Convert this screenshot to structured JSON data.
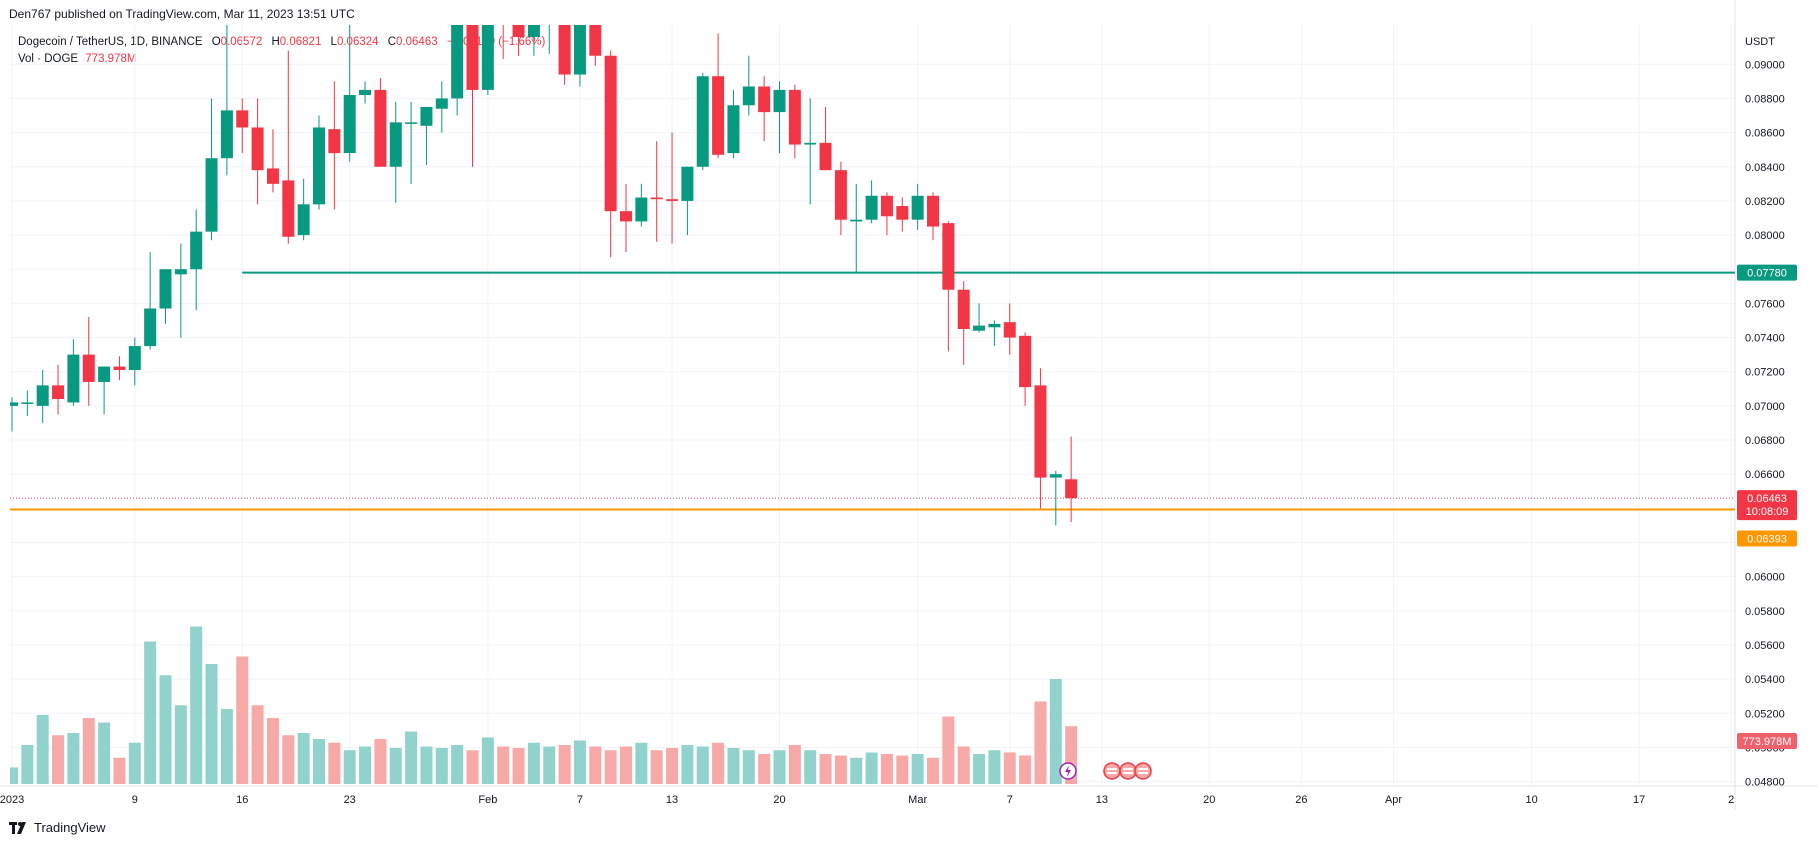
{
  "publisher_line": "Den767 published on TradingView.com, Mar 11, 2023 13:51 UTC",
  "footer": {
    "brand": "TradingView",
    "logo_icon": "tradingview-logo-icon"
  },
  "legend": {
    "symbol": "Dogecoin / TetherUS, 1D, BINANCE",
    "open_label": "O",
    "open": "0.06572",
    "high_label": "H",
    "high": "0.06821",
    "low_label": "L",
    "low": "0.06324",
    "close_label": "C",
    "close": "0.06463",
    "change": "−0.00109 (−1.66%)",
    "volume_label": "Vol · DOGE",
    "volume": "773.978M"
  },
  "colors": {
    "up": "#089981",
    "down": "#f23645",
    "up_volume": "#92d2cc",
    "down_volume": "#f7a9a7",
    "support_line": "#089981",
    "current_level_line": "#ff9800",
    "grid": "#f0f3fa"
  },
  "chart_data": {
    "type": "candlestick",
    "quote_currency": "USDT",
    "ylim": [
      0.0478,
      0.0923
    ],
    "y_ticks": [
      "0.04800",
      "0.05000",
      "0.05200",
      "0.05400",
      "0.05600",
      "0.05800",
      "0.06000",
      "0.06200",
      "0.06400",
      "0.06600",
      "0.06800",
      "0.07000",
      "0.07200",
      "0.07400",
      "0.07600",
      "0.07800",
      "0.08000",
      "0.08200",
      "0.08400",
      "0.08600",
      "0.08800",
      "0.09000"
    ],
    "x_tick_labels": [
      {
        "label": "2023",
        "day": 0
      },
      {
        "label": "9",
        "day": 8
      },
      {
        "label": "16",
        "day": 15
      },
      {
        "label": "23",
        "day": 22
      },
      {
        "label": "Feb",
        "day": 31
      },
      {
        "label": "7",
        "day": 37
      },
      {
        "label": "13",
        "day": 43
      },
      {
        "label": "20",
        "day": 50
      },
      {
        "label": "Mar",
        "day": 59
      },
      {
        "label": "7",
        "day": 65
      },
      {
        "label": "13",
        "day": 71
      },
      {
        "label": "20",
        "day": 78
      },
      {
        "label": "26",
        "day": 84
      },
      {
        "label": "Apr",
        "day": 90
      },
      {
        "label": "10",
        "day": 99
      },
      {
        "label": "17",
        "day": 106
      },
      {
        "label": "2",
        "day": 112
      }
    ],
    "horizontal_lines": [
      {
        "name": "support",
        "value": 0.0778,
        "label": "0.07780",
        "start_day": 15
      },
      {
        "name": "current-level",
        "value": 0.06393,
        "label": "0.06393"
      }
    ],
    "price_badges": {
      "last_price": "0.06463",
      "countdown": "10:08:09",
      "volume": "773.978M"
    },
    "candles": [
      {
        "o": 0.07,
        "h": 0.0705,
        "l": 0.0685,
        "c": 0.0702
      },
      {
        "o": 0.0702,
        "h": 0.0709,
        "l": 0.0694,
        "c": 0.0702
      },
      {
        "o": 0.07,
        "h": 0.0721,
        "l": 0.069,
        "c": 0.0712
      },
      {
        "o": 0.0712,
        "h": 0.0724,
        "l": 0.0695,
        "c": 0.0704
      },
      {
        "o": 0.0702,
        "h": 0.0739,
        "l": 0.07,
        "c": 0.073
      },
      {
        "o": 0.073,
        "h": 0.0752,
        "l": 0.07,
        "c": 0.0714
      },
      {
        "o": 0.0714,
        "h": 0.0722,
        "l": 0.0695,
        "c": 0.0723
      },
      {
        "o": 0.0723,
        "h": 0.0729,
        "l": 0.0715,
        "c": 0.0721
      },
      {
        "o": 0.0721,
        "h": 0.074,
        "l": 0.0712,
        "c": 0.0735
      },
      {
        "o": 0.0735,
        "h": 0.079,
        "l": 0.0733,
        "c": 0.0757
      },
      {
        "o": 0.0757,
        "h": 0.078,
        "l": 0.0748,
        "c": 0.078
      },
      {
        "o": 0.0777,
        "h": 0.0795,
        "l": 0.074,
        "c": 0.078
      },
      {
        "o": 0.078,
        "h": 0.0815,
        "l": 0.0756,
        "c": 0.0802
      },
      {
        "o": 0.0802,
        "h": 0.088,
        "l": 0.0797,
        "c": 0.0845
      },
      {
        "o": 0.0845,
        "h": 0.0945,
        "l": 0.0835,
        "c": 0.0873
      },
      {
        "o": 0.0873,
        "h": 0.088,
        "l": 0.0848,
        "c": 0.0863
      },
      {
        "o": 0.0863,
        "h": 0.088,
        "l": 0.0818,
        "c": 0.0838
      },
      {
        "o": 0.0839,
        "h": 0.0862,
        "l": 0.0825,
        "c": 0.083
      },
      {
        "o": 0.0832,
        "h": 0.0908,
        "l": 0.0795,
        "c": 0.0799
      },
      {
        "o": 0.08,
        "h": 0.0833,
        "l": 0.0797,
        "c": 0.0818
      },
      {
        "o": 0.0818,
        "h": 0.087,
        "l": 0.0815,
        "c": 0.0863
      },
      {
        "o": 0.0862,
        "h": 0.089,
        "l": 0.0815,
        "c": 0.0848
      },
      {
        "o": 0.0848,
        "h": 0.095,
        "l": 0.0843,
        "c": 0.0882
      },
      {
        "o": 0.0882,
        "h": 0.089,
        "l": 0.0877,
        "c": 0.0885
      },
      {
        "o": 0.0885,
        "h": 0.0892,
        "l": 0.084,
        "c": 0.084
      },
      {
        "o": 0.084,
        "h": 0.0878,
        "l": 0.0819,
        "c": 0.0866
      },
      {
        "o": 0.0866,
        "h": 0.0878,
        "l": 0.083,
        "c": 0.0866
      },
      {
        "o": 0.0864,
        "h": 0.0875,
        "l": 0.0841,
        "c": 0.0875
      },
      {
        "o": 0.0874,
        "h": 0.089,
        "l": 0.086,
        "c": 0.088
      },
      {
        "o": 0.088,
        "h": 0.0965,
        "l": 0.087,
        "c": 0.0932
      },
      {
        "o": 0.0932,
        "h": 0.094,
        "l": 0.084,
        "c": 0.0885
      },
      {
        "o": 0.0885,
        "h": 0.099,
        "l": 0.0882,
        "c": 0.097
      },
      {
        "o": 0.097,
        "h": 0.098,
        "l": 0.0903,
        "c": 0.094
      },
      {
        "o": 0.094,
        "h": 0.099,
        "l": 0.0905,
        "c": 0.0916
      },
      {
        "o": 0.0916,
        "h": 0.0945,
        "l": 0.0905,
        "c": 0.0932
      },
      {
        "o": 0.0932,
        "h": 0.096,
        "l": 0.0906,
        "c": 0.0935
      },
      {
        "o": 0.0935,
        "h": 0.095,
        "l": 0.0888,
        "c": 0.0894
      },
      {
        "o": 0.0894,
        "h": 0.0945,
        "l": 0.0887,
        "c": 0.0942
      },
      {
        "o": 0.0942,
        "h": 0.0965,
        "l": 0.0899,
        "c": 0.0905
      },
      {
        "o": 0.0905,
        "h": 0.0908,
        "l": 0.0787,
        "c": 0.0814
      },
      {
        "o": 0.0814,
        "h": 0.083,
        "l": 0.079,
        "c": 0.0808
      },
      {
        "o": 0.0808,
        "h": 0.083,
        "l": 0.0805,
        "c": 0.0822
      },
      {
        "o": 0.0822,
        "h": 0.0855,
        "l": 0.0796,
        "c": 0.0821
      },
      {
        "o": 0.0821,
        "h": 0.086,
        "l": 0.0795,
        "c": 0.082
      },
      {
        "o": 0.082,
        "h": 0.084,
        "l": 0.08,
        "c": 0.084
      },
      {
        "o": 0.084,
        "h": 0.0895,
        "l": 0.0838,
        "c": 0.0893
      },
      {
        "o": 0.0893,
        "h": 0.0918,
        "l": 0.0845,
        "c": 0.0847
      },
      {
        "o": 0.0848,
        "h": 0.0885,
        "l": 0.0845,
        "c": 0.0876
      },
      {
        "o": 0.0876,
        "h": 0.0905,
        "l": 0.087,
        "c": 0.0887
      },
      {
        "o": 0.0887,
        "h": 0.0893,
        "l": 0.0855,
        "c": 0.0872
      },
      {
        "o": 0.0872,
        "h": 0.089,
        "l": 0.0848,
        "c": 0.0885
      },
      {
        "o": 0.0885,
        "h": 0.0888,
        "l": 0.0845,
        "c": 0.0853
      },
      {
        "o": 0.0853,
        "h": 0.088,
        "l": 0.0818,
        "c": 0.0854
      },
      {
        "o": 0.0854,
        "h": 0.0875,
        "l": 0.0838,
        "c": 0.0838
      },
      {
        "o": 0.0838,
        "h": 0.0843,
        "l": 0.08,
        "c": 0.0809
      },
      {
        "o": 0.0808,
        "h": 0.083,
        "l": 0.0778,
        "c": 0.0809
      },
      {
        "o": 0.0809,
        "h": 0.0832,
        "l": 0.0807,
        "c": 0.0823
      },
      {
        "o": 0.0823,
        "h": 0.0825,
        "l": 0.08,
        "c": 0.0811
      },
      {
        "o": 0.0817,
        "h": 0.0822,
        "l": 0.0802,
        "c": 0.0809
      },
      {
        "o": 0.0809,
        "h": 0.083,
        "l": 0.0803,
        "c": 0.0823
      },
      {
        "o": 0.0823,
        "h": 0.0825,
        "l": 0.0797,
        "c": 0.0805
      },
      {
        "o": 0.0807,
        "h": 0.0808,
        "l": 0.0732,
        "c": 0.0768
      },
      {
        "o": 0.0768,
        "h": 0.0773,
        "l": 0.0724,
        "c": 0.0745
      },
      {
        "o": 0.0744,
        "h": 0.076,
        "l": 0.0743,
        "c": 0.0747
      },
      {
        "o": 0.0746,
        "h": 0.075,
        "l": 0.0735,
        "c": 0.0748
      },
      {
        "o": 0.0749,
        "h": 0.076,
        "l": 0.073,
        "c": 0.074
      },
      {
        "o": 0.0741,
        "h": 0.0743,
        "l": 0.07,
        "c": 0.0711
      },
      {
        "o": 0.0712,
        "h": 0.0722,
        "l": 0.064,
        "c": 0.0658
      },
      {
        "o": 0.0658,
        "h": 0.0662,
        "l": 0.063,
        "c": 0.066
      },
      {
        "o": 0.0657,
        "h": 0.0682,
        "l": 0.0632,
        "c": 0.0646
      }
    ],
    "volumes": [
      0.22,
      0.52,
      0.92,
      0.65,
      0.68,
      0.88,
      0.82,
      0.35,
      0.55,
      1.9,
      1.45,
      1.05,
      2.1,
      1.6,
      1.0,
      1.7,
      1.05,
      0.88,
      0.65,
      0.68,
      0.6,
      0.55,
      0.45,
      0.5,
      0.6,
      0.48,
      0.7,
      0.5,
      0.48,
      0.52,
      0.45,
      0.62,
      0.5,
      0.48,
      0.55,
      0.5,
      0.52,
      0.58,
      0.5,
      0.45,
      0.5,
      0.55,
      0.45,
      0.48,
      0.52,
      0.5,
      0.55,
      0.48,
      0.45,
      0.4,
      0.45,
      0.52,
      0.45,
      0.4,
      0.38,
      0.35,
      0.42,
      0.4,
      0.38,
      0.4,
      0.35,
      0.9,
      0.5,
      0.4,
      0.45,
      0.42,
      0.38,
      1.1,
      1.4,
      0.77
    ]
  }
}
